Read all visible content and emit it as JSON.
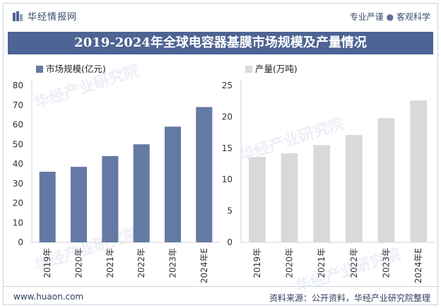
{
  "header": {
    "brand": "华经情报网",
    "tagline_left": "专业严谨",
    "tagline_sep": "●",
    "tagline_right": "客观科学"
  },
  "title": "2019-2024年全球电容器基膜市场规模及产量情况",
  "footer": {
    "website": "www.huaon.com",
    "source": "资料来源：公开资料，华经产业研究院整理"
  },
  "watermarks": [
    "华经产业研究院",
    "华经产业研究院",
    "华经产业研究院",
    "华经产业研究院"
  ],
  "chart_data": [
    {
      "type": "bar",
      "categories": [
        "2019年",
        "2020年",
        "2021年",
        "2022年",
        "2023年",
        "2024年E"
      ],
      "series": [
        {
          "name": "市场规模(亿元)",
          "values": [
            36,
            38.5,
            44,
            50,
            59,
            69
          ]
        }
      ],
      "ylim": [
        0,
        80
      ],
      "yticks": [
        0,
        10,
        20,
        30,
        40,
        50,
        60,
        70,
        80
      ],
      "color": "#6479a3",
      "legend": "top-left"
    },
    {
      "type": "bar",
      "categories": [
        "2019年",
        "2020年",
        "2021年",
        "2022年",
        "2023年",
        "2024年E"
      ],
      "series": [
        {
          "name": "产量(万吨)",
          "values": [
            13.6,
            14.2,
            15.5,
            17.1,
            19.8,
            22.6
          ]
        }
      ],
      "ylim": [
        0,
        25
      ],
      "yticks": [
        0,
        5,
        10,
        15,
        20,
        25
      ],
      "color": "#d9d9d9",
      "legend": "top-left"
    }
  ]
}
